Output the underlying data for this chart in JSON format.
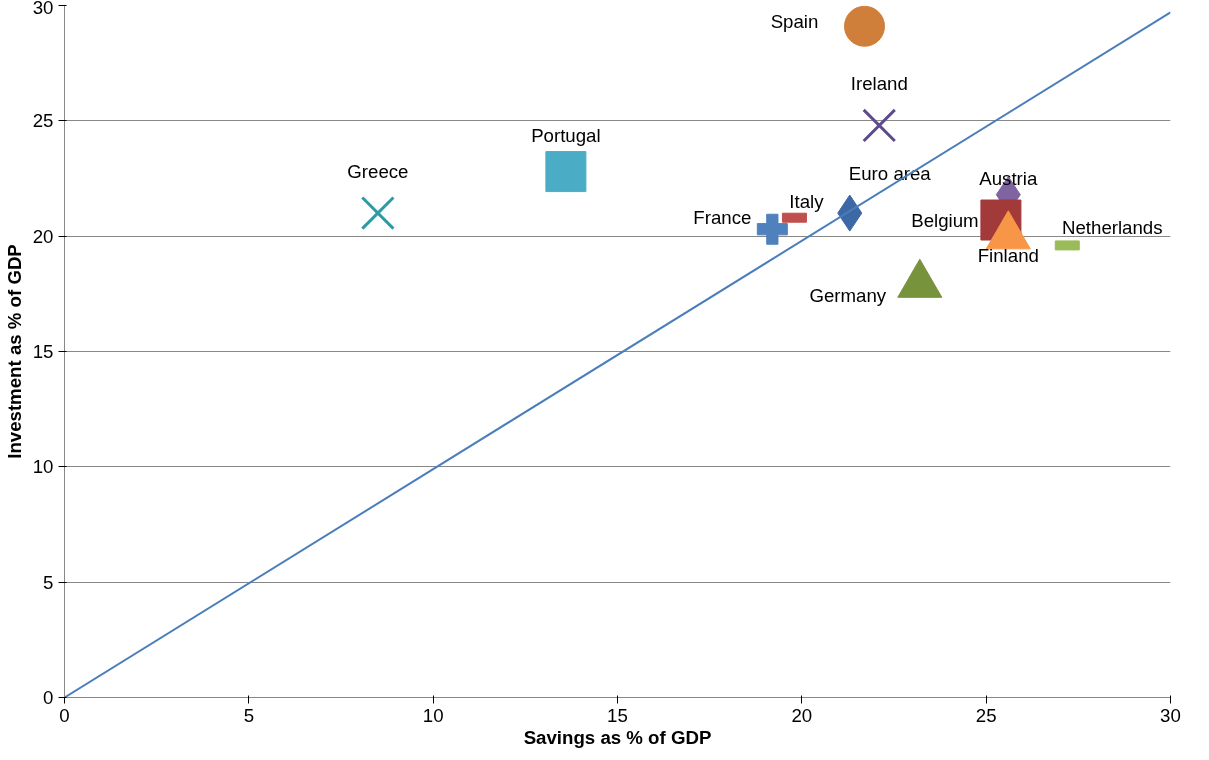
{
  "chart_data": {
    "type": "scatter",
    "xlabel": "Savings as % of GDP",
    "ylabel": "Investment as % of GDP",
    "xlim": [
      0,
      30
    ],
    "ylim": [
      0,
      30
    ],
    "xticks": [
      0,
      5,
      10,
      15,
      20,
      25,
      30
    ],
    "yticks": [
      0,
      5,
      10,
      15,
      20,
      25,
      30
    ],
    "grid": "y",
    "series": [
      {
        "name": "Spain",
        "color": "#d07f3a",
        "marker": "circle",
        "x": [
          21.7
        ],
        "values": [
          29.1
        ]
      },
      {
        "name": "Ireland",
        "color": "#5f4b8b",
        "marker": "cross",
        "x": [
          22.1
        ],
        "values": [
          24.8
        ]
      },
      {
        "name": "Portugal",
        "color": "#4bacc6",
        "marker": "square",
        "x": [
          13.6
        ],
        "values": [
          22.8
        ]
      },
      {
        "name": "Greece",
        "color": "#2e9aa6",
        "marker": "cross",
        "x": [
          8.5
        ],
        "values": [
          21.0
        ]
      },
      {
        "name": "France",
        "color": "#4f81bd",
        "marker": "cross",
        "x": [
          19.2
        ],
        "values": [
          20.3
        ]
      },
      {
        "name": "Italy",
        "color": "#c0504d",
        "marker": "square",
        "x": [
          19.8
        ],
        "values": [
          20.8
        ]
      },
      {
        "name": "Euro area",
        "color": "#3c68a6",
        "marker": "diamond",
        "x": [
          21.3
        ],
        "values": [
          21.0
        ]
      },
      {
        "name": "Austria",
        "color": "#8064a2",
        "marker": "diamond",
        "x": [
          25.6
        ],
        "values": [
          21.8
        ]
      },
      {
        "name": "Belgium",
        "color": "#a33a3a",
        "marker": "square",
        "x": [
          25.4
        ],
        "values": [
          20.7
        ]
      },
      {
        "name": "Finland",
        "color": "#f79646",
        "marker": "triangle",
        "x": [
          25.6
        ],
        "values": [
          20.0
        ]
      },
      {
        "name": "Netherlands",
        "color": "#9bbb59",
        "marker": "square",
        "x": [
          27.2
        ],
        "values": [
          19.6
        ]
      },
      {
        "name": "Germany",
        "color": "#77933c",
        "marker": "triangle",
        "x": [
          23.2
        ],
        "values": [
          17.9
        ]
      },
      {
        "type": "line",
        "color": "#4a7ebb",
        "x": [
          0,
          30
        ],
        "values": [
          0,
          29.7
        ]
      }
    ]
  }
}
